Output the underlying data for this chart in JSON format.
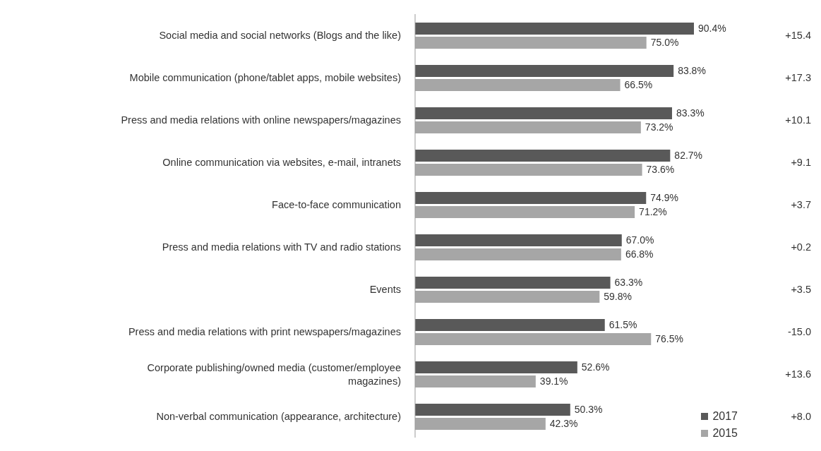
{
  "chart_data": {
    "type": "bar",
    "orientation": "horizontal",
    "categories": [
      "Social media and social networks (Blogs and the like)",
      "Mobile communication (phone/tablet apps, mobile websites)",
      "Press and media relations with online newspapers/magazines",
      "Online communication via websites, e-mail, intranets",
      "Face-to-face communication",
      "Press and media relations with TV and radio stations",
      "Events",
      "Press and media relations with print newspapers/magazines",
      "Corporate publishing/owned media (customer/employee magazines)",
      "Non-verbal communication (appearance, architecture)"
    ],
    "series": [
      {
        "name": "2017",
        "color": "#595959",
        "values": [
          90.4,
          83.8,
          83.3,
          82.7,
          74.9,
          67.0,
          63.3,
          61.5,
          52.6,
          50.3
        ],
        "value_labels": [
          "90.4%",
          "83.8%",
          "83.3%",
          "82.7%",
          "74.9%",
          "67.0%",
          "63.3%",
          "61.5%",
          "52.6%",
          "50.3%"
        ]
      },
      {
        "name": "2015",
        "color": "#a6a6a6",
        "values": [
          75.0,
          66.5,
          73.2,
          73.6,
          71.2,
          66.8,
          59.8,
          76.5,
          39.1,
          42.3
        ],
        "value_labels": [
          "75.0%",
          "66.5%",
          "73.2%",
          "73.6%",
          "71.2%",
          "66.8%",
          "59.8%",
          "76.5%",
          "39.1%",
          "42.3%"
        ]
      }
    ],
    "annotations": [
      "+15.4",
      "+17.3",
      "+10.1",
      "+9.1",
      "+3.7",
      "+0.2",
      "+3.5",
      "-15.0",
      "+13.6",
      "+8.0"
    ],
    "legend": "bottom right"
  }
}
